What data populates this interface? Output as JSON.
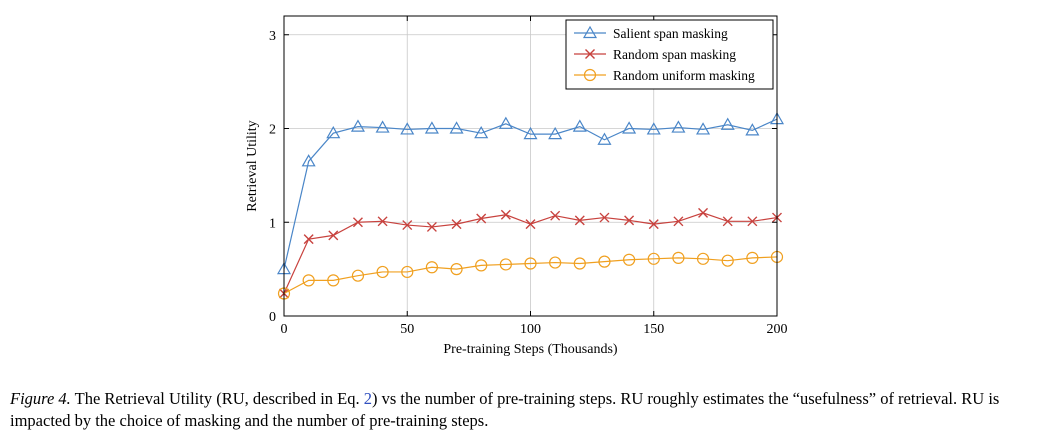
{
  "chart_data": {
    "type": "line",
    "xlabel": "Pre-training Steps (Thousands)",
    "ylabel": "Retrieval Utility",
    "xlim": [
      0,
      200
    ],
    "ylim": [
      0,
      3.2
    ],
    "xticks": [
      0,
      50,
      100,
      150,
      200
    ],
    "yticks": [
      0,
      1,
      2,
      3
    ],
    "grid": true,
    "legend_position": "top-right",
    "x": [
      0,
      10,
      20,
      30,
      40,
      50,
      60,
      70,
      80,
      90,
      100,
      110,
      120,
      130,
      140,
      150,
      160,
      170,
      180,
      190,
      200
    ],
    "series": [
      {
        "name": "Salient span masking",
        "color": "#4a86c8",
        "marker": "triangle",
        "values": [
          0.5,
          1.65,
          1.95,
          2.02,
          2.01,
          1.99,
          2.0,
          2.0,
          1.95,
          2.05,
          1.94,
          1.94,
          2.02,
          1.88,
          2.0,
          1.99,
          2.01,
          1.99,
          2.04,
          1.98,
          2.1
        ]
      },
      {
        "name": "Random span masking",
        "color": "#c8423e",
        "marker": "x",
        "values": [
          0.24,
          0.82,
          0.86,
          1.0,
          1.01,
          0.97,
          0.95,
          0.98,
          1.04,
          1.08,
          0.98,
          1.07,
          1.02,
          1.05,
          1.02,
          0.98,
          1.01,
          1.1,
          1.01,
          1.01,
          1.05
        ]
      },
      {
        "name": "Random uniform masking",
        "color": "#f0a020",
        "marker": "circle",
        "values": [
          0.24,
          0.38,
          0.38,
          0.43,
          0.47,
          0.47,
          0.52,
          0.5,
          0.54,
          0.55,
          0.56,
          0.57,
          0.56,
          0.58,
          0.6,
          0.61,
          0.62,
          0.61,
          0.59,
          0.62,
          0.63
        ]
      }
    ]
  },
  "caption": {
    "label": "Figure 4.",
    "part1": " The Retrieval Utility (RU, described in Eq. ",
    "ref": "2",
    "part2": ") vs the number of pre-training steps. RU roughly estimates the “usefulness” of retrieval. RU is impacted by the choice of masking and the number of pre-training steps."
  }
}
